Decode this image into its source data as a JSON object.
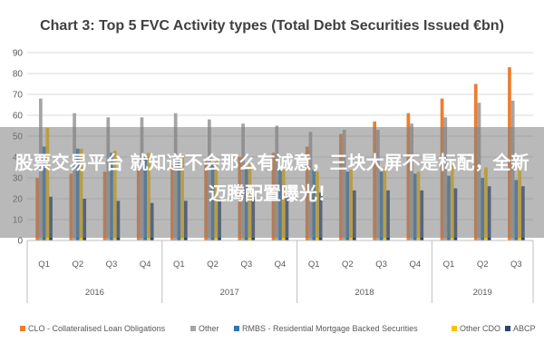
{
  "chart_data": {
    "type": "bar",
    "title": "Chart 3: Top 5 FVC Activity types (Total Debt Securities Issued €bn)",
    "xlabel": "",
    "ylabel": "",
    "ylim": [
      0,
      90
    ],
    "yticks": [
      0,
      10,
      20,
      30,
      40,
      50,
      60,
      70,
      80,
      90
    ],
    "grid": true,
    "legend_position": "bottom",
    "categories": [
      "Q1",
      "Q2",
      "Q3",
      "Q4",
      "Q1",
      "Q2",
      "Q3",
      "Q4",
      "Q1",
      "Q2",
      "Q3",
      "Q4",
      "Q1",
      "Q2",
      "Q3"
    ],
    "groups": [
      {
        "label": "2016",
        "count": 4
      },
      {
        "label": "2017",
        "count": 4
      },
      {
        "label": "2018",
        "count": 4
      },
      {
        "label": "2019",
        "count": 3
      }
    ],
    "series": [
      {
        "name": "CLO - Collateralised Loan Obligations",
        "color": "#ED7D31",
        "values": [
          30,
          32,
          33,
          34,
          36,
          38,
          40,
          42,
          45,
          51,
          57,
          61,
          68,
          75,
          83
        ]
      },
      {
        "name": "Other",
        "color": "#A5A5A5",
        "values": [
          68,
          61,
          59,
          59,
          61,
          58,
          56,
          55,
          52,
          53,
          53,
          56,
          59,
          66,
          67
        ]
      },
      {
        "name": "RMBS - Residential Mortgage Backed Securities",
        "color": "#2E75B6",
        "values": [
          45,
          44,
          42,
          40,
          39,
          37,
          35,
          34,
          34,
          33,
          33,
          32,
          31,
          30,
          29
        ]
      },
      {
        "name": "Other CDO",
        "color": "#FFC000",
        "values": [
          54,
          44,
          43,
          42,
          41,
          38,
          37,
          34,
          33,
          34,
          35,
          33,
          36,
          35,
          36
        ]
      },
      {
        "name": "ABCP",
        "color": "#264478",
        "values": [
          21,
          20,
          19,
          18,
          19,
          20,
          21,
          22,
          23,
          24,
          24,
          24,
          25,
          26,
          26
        ]
      }
    ]
  },
  "overlay": {
    "caption": "股票交易平台 就知道不会那么有诚意，三块大屏不是标配，全新迈腾配置曝光！"
  }
}
